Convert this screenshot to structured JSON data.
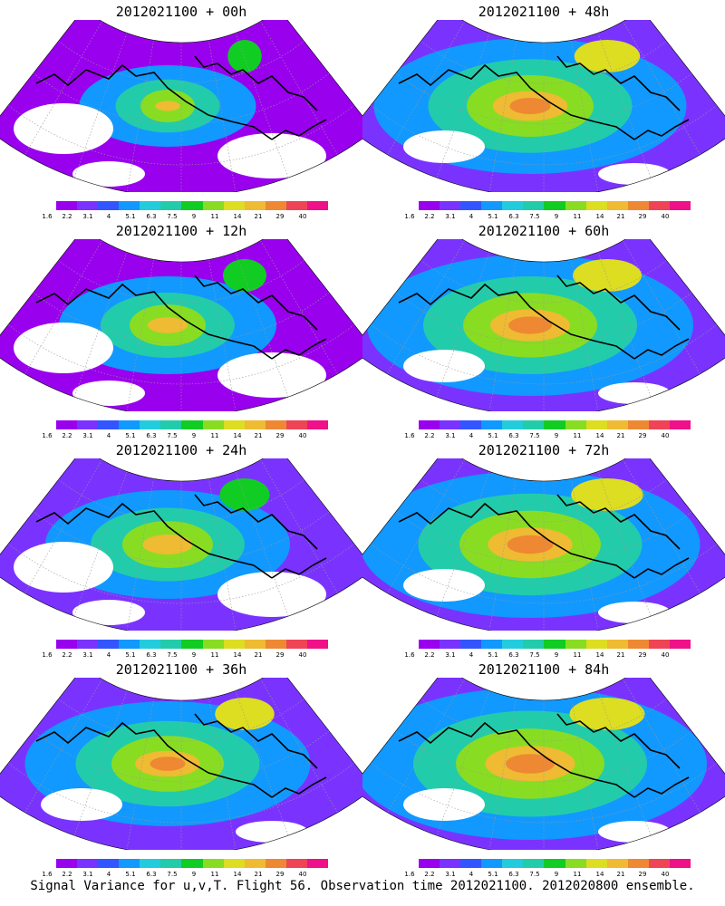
{
  "caption": "Signal Variance for u,v,T. Flight 56. Observation time 2012021100. 2012020800 ensemble.",
  "colorbar": {
    "colors": [
      "#9900ee",
      "#7a33ff",
      "#3355ff",
      "#1199ff",
      "#22ccdd",
      "#22ccaa",
      "#11cc22",
      "#88dd22",
      "#dddd22",
      "#eebb33",
      "#ee8833",
      "#ee4455",
      "#ee1188"
    ],
    "labels": [
      "1.6",
      "2.2",
      "3.1",
      "4",
      "5.1",
      "6.3",
      "7.5",
      "9",
      "11",
      "14",
      "21",
      "29",
      "40"
    ]
  },
  "panels": [
    {
      "title": "2012021100 + 00h",
      "intensity": 0.25
    },
    {
      "title": "2012021100 + 48h",
      "intensity": 0.75
    },
    {
      "title": "2012021100 + 12h",
      "intensity": 0.4
    },
    {
      "title": "2012021100 + 60h",
      "intensity": 0.8
    },
    {
      "title": "2012021100 + 24h",
      "intensity": 0.5
    },
    {
      "title": "2012021100 + 72h",
      "intensity": 0.85
    },
    {
      "title": "2012021100 + 36h",
      "intensity": 0.65
    },
    {
      "title": "2012021100 + 84h",
      "intensity": 0.9
    }
  ]
}
